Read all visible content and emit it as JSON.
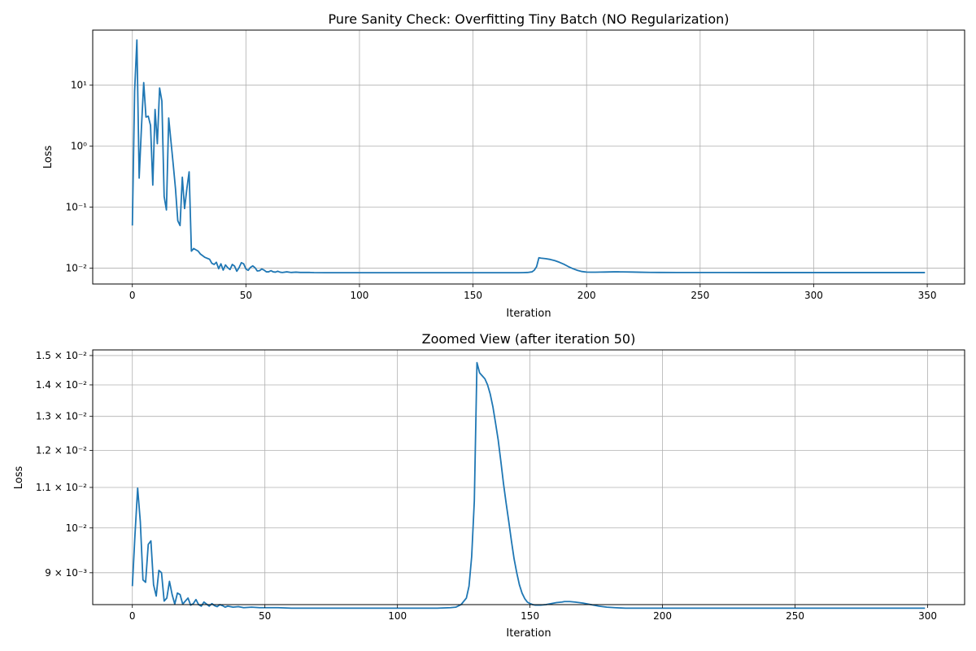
{
  "chart_data": [
    {
      "type": "line",
      "title": "Pure Sanity Check: Overfitting Tiny Batch (NO Regularization)",
      "xlabel": "Iteration",
      "ylabel": "Loss",
      "yscale": "log",
      "xlim": [
        -17.45,
        366.45
      ],
      "ylim": [
        0.0055,
        80
      ],
      "grid": true,
      "x_ticks": [
        0,
        50,
        100,
        150,
        200,
        250,
        300,
        350
      ],
      "x_tick_labels": [
        "0",
        "50",
        "100",
        "150",
        "200",
        "250",
        "300",
        "350"
      ],
      "y_ticks": [
        0.01,
        0.1,
        1,
        10
      ],
      "y_tick_labels": [
        "10⁻²",
        "10⁻¹",
        "10⁰",
        "10¹"
      ],
      "series": [
        {
          "color": "#1f77b4",
          "points": [
            [
              0,
              0.05
            ],
            [
              1,
              8
            ],
            [
              2,
              55
            ],
            [
              3,
              0.3
            ],
            [
              4,
              2
            ],
            [
              5,
              11
            ],
            [
              6,
              3
            ],
            [
              7,
              3.1
            ],
            [
              8,
              2.2
            ],
            [
              9,
              0.23
            ],
            [
              10,
              4
            ],
            [
              11,
              1.1
            ],
            [
              12,
              9
            ],
            [
              13,
              5.5
            ],
            [
              14,
              0.15
            ],
            [
              15,
              0.09
            ],
            [
              16,
              2.9
            ],
            [
              17,
              1.2
            ],
            [
              18,
              0.5
            ],
            [
              19,
              0.2
            ],
            [
              20,
              0.06
            ],
            [
              21,
              0.05
            ],
            [
              22,
              0.31
            ],
            [
              23,
              0.095
            ],
            [
              24,
              0.2
            ],
            [
              25,
              0.38
            ],
            [
              26,
              0.019
            ],
            [
              27,
              0.021
            ],
            [
              29,
              0.019
            ],
            [
              30,
              0.017
            ],
            [
              32,
              0.015
            ],
            [
              34,
              0.014
            ],
            [
              35,
              0.012
            ],
            [
              36,
              0.0115
            ],
            [
              37,
              0.0125
            ],
            [
              38,
              0.0098
            ],
            [
              39,
              0.0118
            ],
            [
              40,
              0.0093
            ],
            [
              41,
              0.0113
            ],
            [
              42,
              0.0102
            ],
            [
              43,
              0.0095
            ],
            [
              44,
              0.0115
            ],
            [
              45,
              0.0108
            ],
            [
              46,
              0.0089
            ],
            [
              47,
              0.0102
            ],
            [
              48,
              0.0123
            ],
            [
              49,
              0.0118
            ],
            [
              50,
              0.0097
            ],
            [
              51,
              0.0092
            ],
            [
              52,
              0.0103
            ],
            [
              53,
              0.0109
            ],
            [
              54,
              0.0102
            ],
            [
              55,
              0.009
            ],
            [
              56,
              0.0091
            ],
            [
              57,
              0.0097
            ],
            [
              58,
              0.0093
            ],
            [
              59,
              0.0087
            ],
            [
              60,
              0.0087
            ],
            [
              61,
              0.0091
            ],
            [
              62,
              0.0087
            ],
            [
              63,
              0.0086
            ],
            [
              64,
              0.0089
            ],
            [
              65,
              0.0086
            ],
            [
              66,
              0.0085
            ],
            [
              68,
              0.0087
            ],
            [
              70,
              0.0085
            ],
            [
              72,
              0.0086
            ],
            [
              74,
              0.0085
            ],
            [
              76,
              0.0085
            ],
            [
              78,
              0.0085
            ],
            [
              80,
              0.00845
            ],
            [
              85,
              0.00843
            ],
            [
              90,
              0.00843
            ],
            [
              100,
              0.00843
            ],
            [
              120,
              0.00843
            ],
            [
              140,
              0.00843
            ],
            [
              160,
              0.00843
            ],
            [
              170,
              0.00843
            ],
            [
              172,
              0.00845
            ],
            [
              174,
              0.0085
            ],
            [
              176,
              0.0087
            ],
            [
              177,
              0.0093
            ],
            [
              178,
              0.0106
            ],
            [
              179,
              0.0148
            ],
            [
              180,
              0.0146
            ],
            [
              182,
              0.0143
            ],
            [
              184,
              0.0139
            ],
            [
              186,
              0.0133
            ],
            [
              188,
              0.0125
            ],
            [
              190,
              0.0116
            ],
            [
              192,
              0.0106
            ],
            [
              194,
              0.0098
            ],
            [
              196,
              0.0092
            ],
            [
              198,
              0.0088
            ],
            [
              200,
              0.00863
            ],
            [
              202,
              0.00858
            ],
            [
              204,
              0.00858
            ],
            [
              206,
              0.00861
            ],
            [
              208,
              0.00864
            ],
            [
              210,
              0.00867
            ],
            [
              212,
              0.0087
            ],
            [
              214,
              0.0087
            ],
            [
              216,
              0.00868
            ],
            [
              220,
              0.00864
            ],
            [
              224,
              0.00857
            ],
            [
              228,
              0.00852
            ],
            [
              232,
              0.0085
            ],
            [
              240,
              0.00848
            ],
            [
              260,
              0.00848
            ],
            [
              280,
              0.00847
            ],
            [
              300,
              0.00847
            ],
            [
              320,
              0.00847
            ],
            [
              349,
              0.00847
            ]
          ]
        }
      ]
    },
    {
      "type": "line",
      "title": "Zoomed View (after iteration 50)",
      "xlabel": "Iteration",
      "ylabel": "Loss",
      "yscale": "log",
      "xlim": [
        -14.95,
        313.95
      ],
      "ylim": [
        0.00835,
        0.0152
      ],
      "grid": true,
      "x_ticks": [
        0,
        50,
        100,
        150,
        200,
        250,
        300
      ],
      "x_tick_labels": [
        "0",
        "50",
        "100",
        "150",
        "200",
        "250",
        "300"
      ],
      "y_ticks": [
        0.009,
        0.01,
        0.011,
        0.012,
        0.013,
        0.014,
        0.015
      ],
      "y_tick_labels": [
        "9 × 10⁻³",
        "10⁻²",
        "1.1 × 10⁻²",
        "1.2 × 10⁻²",
        "1.3 × 10⁻²",
        "1.4 × 10⁻²",
        "1.5 × 10⁻²"
      ],
      "series": [
        {
          "color": "#1f77b4",
          "points": [
            [
              0,
              0.00872
            ],
            [
              1,
              0.00985
            ],
            [
              2,
              0.01098
            ],
            [
              3,
              0.01015
            ],
            [
              4,
              0.00885
            ],
            [
              5,
              0.0088
            ],
            [
              6,
              0.00962
            ],
            [
              7,
              0.0097
            ],
            [
              8,
              0.00875
            ],
            [
              9,
              0.00852
            ],
            [
              10,
              0.00905
            ],
            [
              11,
              0.009
            ],
            [
              12,
              0.00842
            ],
            [
              13,
              0.00848
            ],
            [
              14,
              0.00882
            ],
            [
              15,
              0.00855
            ],
            [
              16,
              0.00836
            ],
            [
              17,
              0.00858
            ],
            [
              18,
              0.00855
            ],
            [
              19,
              0.00836
            ],
            [
              20,
              0.00842
            ],
            [
              21,
              0.00848
            ],
            [
              22,
              0.00834
            ],
            [
              23,
              0.00837
            ],
            [
              24,
              0.00845
            ],
            [
              25,
              0.00835
            ],
            [
              26,
              0.00832
            ],
            [
              27,
              0.0084
            ],
            [
              28,
              0.00836
            ],
            [
              29,
              0.00832
            ],
            [
              30,
              0.00837
            ],
            [
              31,
              0.00833
            ],
            [
              32,
              0.00831
            ],
            [
              33,
              0.00835
            ],
            [
              34,
              0.00833
            ],
            [
              35,
              0.0083
            ],
            [
              36,
              0.00832
            ],
            [
              38,
              0.0083
            ],
            [
              40,
              0.00831
            ],
            [
              42,
              0.00829
            ],
            [
              45,
              0.0083
            ],
            [
              48,
              0.00829
            ],
            [
              50,
              0.00829
            ],
            [
              55,
              0.00829
            ],
            [
              60,
              0.00828
            ],
            [
              70,
              0.00828
            ],
            [
              80,
              0.00828
            ],
            [
              100,
              0.00828
            ],
            [
              115,
              0.00828
            ],
            [
              120,
              0.00829
            ],
            [
              122,
              0.0083
            ],
            [
              124,
              0.00835
            ],
            [
              126,
              0.00848
            ],
            [
              127,
              0.00872
            ],
            [
              128,
              0.00935
            ],
            [
              129,
              0.01065
            ],
            [
              130,
              0.01475
            ],
            [
              131,
              0.0144
            ],
            [
              132,
              0.0143
            ],
            [
              133,
              0.0142
            ],
            [
              134,
              0.014
            ],
            [
              135,
              0.0137
            ],
            [
              136,
              0.0133
            ],
            [
              137,
              0.0128
            ],
            [
              138,
              0.0123
            ],
            [
              139,
              0.0117
            ],
            [
              140,
              0.0111
            ],
            [
              141,
              0.0106
            ],
            [
              142,
              0.01015
            ],
            [
              143,
              0.0097
            ],
            [
              144,
              0.0093
            ],
            [
              145,
              0.009
            ],
            [
              146,
              0.00875
            ],
            [
              147,
              0.00858
            ],
            [
              148,
              0.00847
            ],
            [
              149,
              0.0084
            ],
            [
              150,
              0.00837
            ],
            [
              151,
              0.00835
            ],
            [
              152,
              0.00834
            ],
            [
              154,
              0.00834
            ],
            [
              156,
              0.00835
            ],
            [
              158,
              0.00837
            ],
            [
              160,
              0.00839
            ],
            [
              162,
              0.0084
            ],
            [
              163,
              0.00841
            ],
            [
              165,
              0.00841
            ],
            [
              167,
              0.0084
            ],
            [
              170,
              0.00838
            ],
            [
              173,
              0.00835
            ],
            [
              176,
              0.00832
            ],
            [
              179,
              0.0083
            ],
            [
              182,
              0.00829
            ],
            [
              186,
              0.00828
            ],
            [
              200,
              0.00828
            ],
            [
              230,
              0.00828
            ],
            [
              260,
              0.00828
            ],
            [
              299,
              0.00828
            ]
          ]
        }
      ]
    }
  ]
}
